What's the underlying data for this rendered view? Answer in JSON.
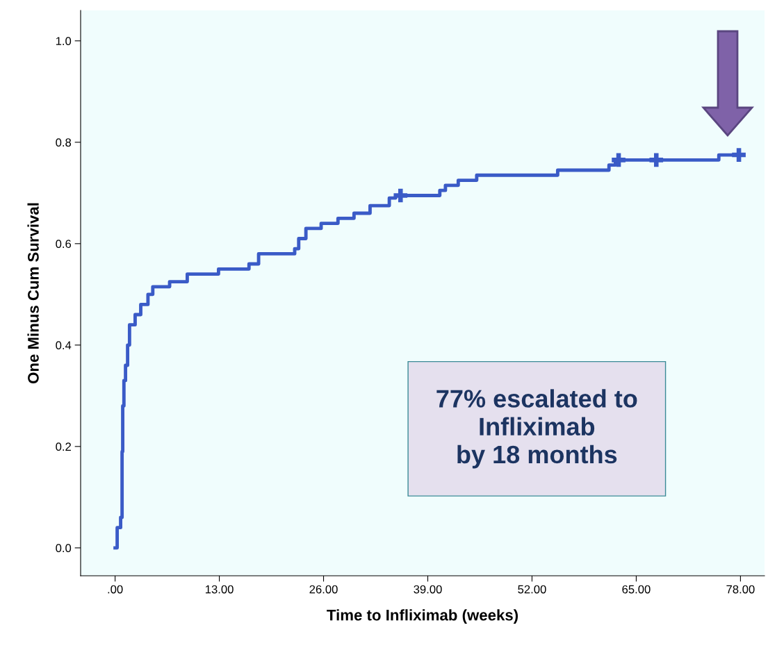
{
  "chart_data": {
    "type": "step",
    "xlabel": "Time to Infliximab (weeks)",
    "ylabel": "One Minus Cum Survival",
    "xlim": [
      -4.3,
      81.0
    ],
    "ylim": [
      -0.055,
      1.06
    ],
    "xticks": [
      {
        "value": 0,
        "label": ".00"
      },
      {
        "value": 13,
        "label": "13.00"
      },
      {
        "value": 26,
        "label": "26.00"
      },
      {
        "value": 39,
        "label": "39.00"
      },
      {
        "value": 52,
        "label": "52.00"
      },
      {
        "value": 65,
        "label": "65.00"
      },
      {
        "value": 78,
        "label": "78.00"
      }
    ],
    "yticks": [
      {
        "value": 0,
        "label": "0.0"
      },
      {
        "value": 0.2,
        "label": "0.2"
      },
      {
        "value": 0.4,
        "label": "0.4"
      },
      {
        "value": 0.6,
        "label": "0.6"
      },
      {
        "value": 0.8,
        "label": "0.8"
      },
      {
        "value": 1.0,
        "label": "1.0"
      }
    ],
    "grid": false,
    "series": [
      {
        "color": "#3a5bc7",
        "x": [
          0,
          0.26,
          0.69,
          0.87,
          0.95,
          1.1,
          1.3,
          1.56,
          1.8,
          2.5,
          3.2,
          4.1,
          4.7,
          6.8,
          9.0,
          12.9,
          16.7,
          17.9,
          22.4,
          22.9,
          23.8,
          25.7,
          27.8,
          29.8,
          31.8,
          34.2,
          35.0,
          40.5,
          41.2,
          42.8,
          45.1,
          55.2,
          61.6,
          62.4,
          75.3,
          78.2
        ],
        "values": [
          0,
          0.04,
          0.06,
          0.19,
          0.28,
          0.33,
          0.36,
          0.4,
          0.44,
          0.46,
          0.48,
          0.5,
          0.515,
          0.525,
          0.54,
          0.55,
          0.56,
          0.58,
          0.59,
          0.61,
          0.63,
          0.64,
          0.65,
          0.66,
          0.675,
          0.69,
          0.695,
          0.705,
          0.715,
          0.725,
          0.735,
          0.745,
          0.755,
          0.765,
          0.775,
          0.775
        ]
      },
      {
        "type": "scatter",
        "color": "#3a5bc7",
        "marker": "cross",
        "x": [
          35.6,
          62.8,
          67.5,
          77.8
        ],
        "values": [
          0.695,
          0.765,
          0.765,
          0.775
        ]
      }
    ],
    "annotations": [
      "77% escalated to\nInfliximab\nby 18 months"
    ]
  }
}
